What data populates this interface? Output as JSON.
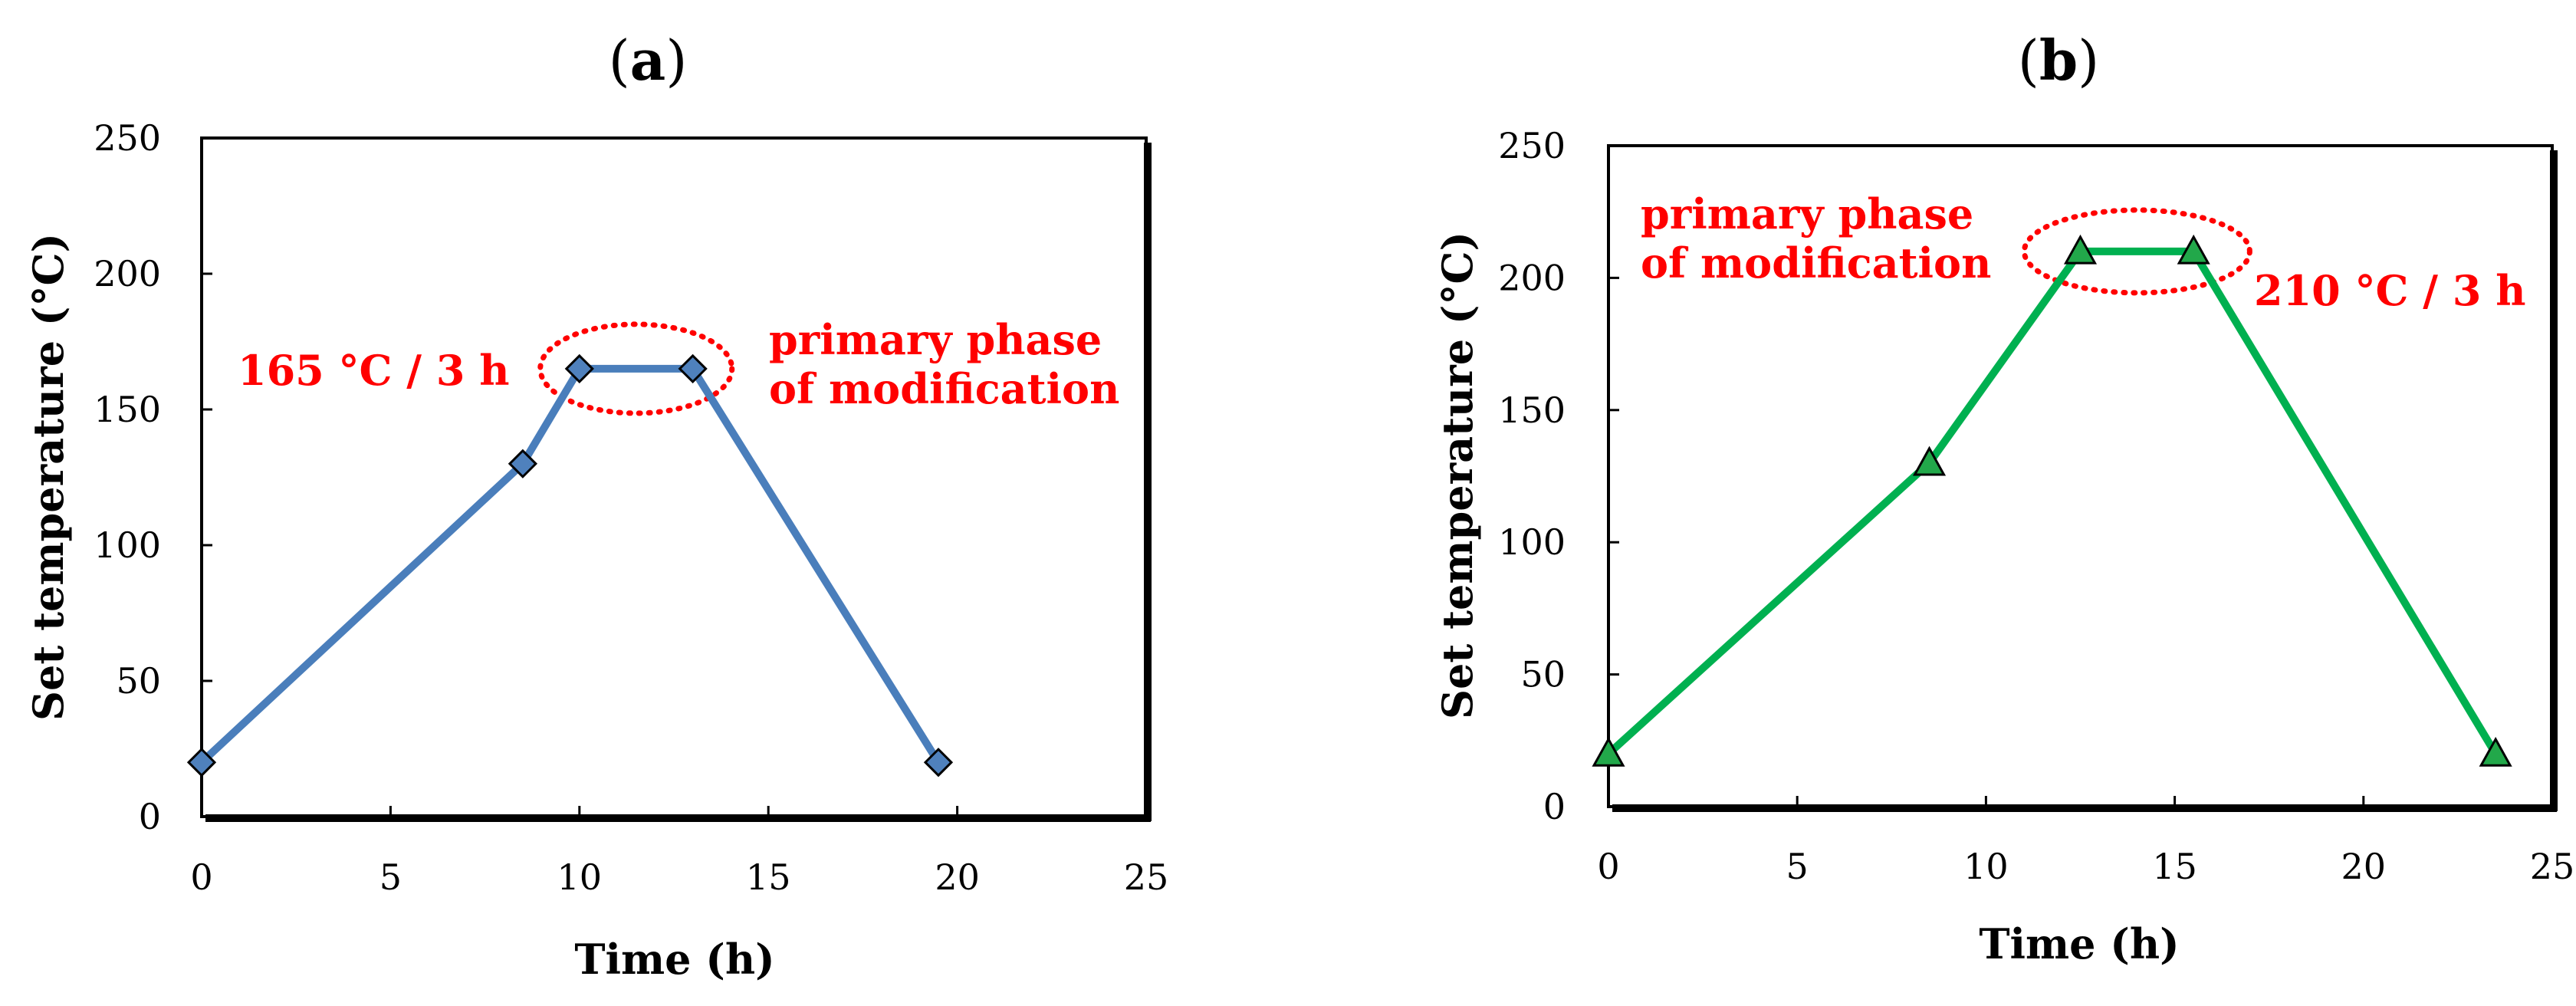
{
  "chart_data": [
    {
      "type": "line",
      "panel_label": "a",
      "title": "",
      "xlabel": "Time (h)",
      "ylabel": "Set temperature (°C)",
      "xlim": [
        0,
        25
      ],
      "ylim": [
        0,
        250
      ],
      "xticks": [
        0,
        5,
        10,
        15,
        20,
        25
      ],
      "yticks": [
        0,
        50,
        100,
        150,
        200,
        250
      ],
      "grid": false,
      "series": [
        {
          "x": [
            0,
            8.5,
            10,
            13,
            19.5
          ],
          "y": [
            20,
            130,
            165,
            165,
            20
          ],
          "color": "#4a7ebb",
          "marker": "diamond",
          "marker_color": "#4f81bd"
        }
      ],
      "annotations": [
        {
          "id": "label",
          "lines": [
            "165 °C / 3 h"
          ]
        },
        {
          "id": "phase",
          "lines": [
            "primary phase",
            "of modification"
          ]
        }
      ],
      "highlight": {
        "shape": "dotted-ellipse",
        "color": "#ff0000",
        "x_center": 11.5,
        "y_center": 165
      }
    },
    {
      "type": "line",
      "panel_label": "b",
      "title": "",
      "xlabel": "Time (h)",
      "ylabel": "Set temperature (°C)",
      "xlim": [
        0,
        25
      ],
      "ylim": [
        0,
        250
      ],
      "xticks": [
        0,
        5,
        10,
        15,
        20,
        25
      ],
      "yticks": [
        0,
        50,
        100,
        150,
        200,
        250
      ],
      "grid": false,
      "series": [
        {
          "x": [
            0,
            8.5,
            12.5,
            15.5,
            23.5
          ],
          "y": [
            20,
            130,
            210,
            210,
            20
          ],
          "color": "#00b050",
          "marker": "triangle",
          "marker_color": "#22a84a"
        }
      ],
      "annotations": [
        {
          "id": "phase",
          "lines": [
            "primary phase",
            "of modification"
          ]
        },
        {
          "id": "label",
          "lines": [
            "210 °C / 3 h"
          ]
        }
      ],
      "highlight": {
        "shape": "dotted-ellipse",
        "color": "#ff0000",
        "x_center": 14,
        "y_center": 210
      }
    }
  ]
}
